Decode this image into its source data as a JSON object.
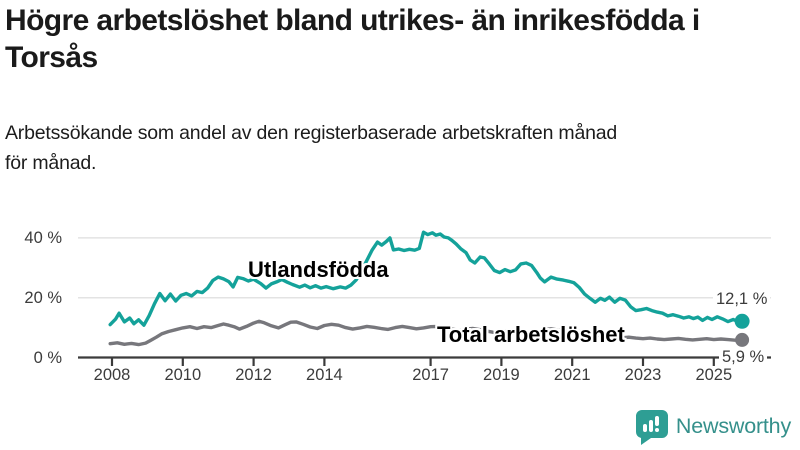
{
  "header": {
    "title_line1": "Högre arbetslöshet bland utrikes- än inrikesfödda i",
    "title_line2": "Torsås",
    "subtitle_line1": "Arbetssökande som andel av den registerbaserade arbetskraften månad",
    "subtitle_line2": "för månad."
  },
  "chart_data": {
    "type": "line",
    "unit": "%",
    "x_axis": {
      "label": "",
      "ticks": [
        2008,
        2010,
        2012,
        2014,
        2017,
        2019,
        2021,
        2023,
        2025
      ],
      "range": [
        2007.9,
        2026.0
      ]
    },
    "y_axis": {
      "label": "",
      "tick_labels": [
        "40 %",
        "20 %",
        "0 %"
      ],
      "tick_values": [
        40,
        20,
        0
      ],
      "range": [
        0,
        44
      ],
      "grid": true
    },
    "series": [
      {
        "name": "Utlandsfödda",
        "color": "#14a29a",
        "end_label": "12,1 %",
        "end_value": 12.1,
        "points": [
          [
            2007.95,
            11.0
          ],
          [
            2008.1,
            12.8
          ],
          [
            2008.2,
            14.8
          ],
          [
            2008.35,
            11.9
          ],
          [
            2008.5,
            13.2
          ],
          [
            2008.62,
            11.3
          ],
          [
            2008.75,
            12.6
          ],
          [
            2008.9,
            10.8
          ],
          [
            2009.05,
            14.0
          ],
          [
            2009.2,
            18.0
          ],
          [
            2009.35,
            21.4
          ],
          [
            2009.5,
            19.0
          ],
          [
            2009.65,
            21.2
          ],
          [
            2009.8,
            18.9
          ],
          [
            2009.95,
            20.8
          ],
          [
            2010.1,
            21.4
          ],
          [
            2010.25,
            20.6
          ],
          [
            2010.4,
            22.1
          ],
          [
            2010.55,
            21.7
          ],
          [
            2010.7,
            23.2
          ],
          [
            2010.85,
            25.8
          ],
          [
            2011.0,
            26.9
          ],
          [
            2011.15,
            26.3
          ],
          [
            2011.3,
            25.4
          ],
          [
            2011.42,
            23.6
          ],
          [
            2011.55,
            26.8
          ],
          [
            2011.7,
            26.4
          ],
          [
            2011.85,
            25.6
          ],
          [
            2012.0,
            26.2
          ],
          [
            2012.2,
            24.7
          ],
          [
            2012.35,
            23.2
          ],
          [
            2012.5,
            24.6
          ],
          [
            2012.65,
            25.3
          ],
          [
            2012.8,
            26.1
          ],
          [
            2012.95,
            25.2
          ],
          [
            2013.1,
            24.4
          ],
          [
            2013.3,
            23.5
          ],
          [
            2013.45,
            24.2
          ],
          [
            2013.6,
            23.3
          ],
          [
            2013.75,
            24.0
          ],
          [
            2013.9,
            23.2
          ],
          [
            2014.05,
            23.7
          ],
          [
            2014.25,
            23.0
          ],
          [
            2014.45,
            23.6
          ],
          [
            2014.6,
            23.2
          ],
          [
            2014.75,
            24.2
          ],
          [
            2014.9,
            26.0
          ],
          [
            2015.05,
            29.0
          ],
          [
            2015.2,
            32.5
          ],
          [
            2015.35,
            36.0
          ],
          [
            2015.5,
            38.6
          ],
          [
            2015.62,
            37.6
          ],
          [
            2015.75,
            38.8
          ],
          [
            2015.85,
            40.0
          ],
          [
            2015.95,
            36.0
          ],
          [
            2016.1,
            36.3
          ],
          [
            2016.25,
            35.8
          ],
          [
            2016.4,
            36.2
          ],
          [
            2016.55,
            35.9
          ],
          [
            2016.68,
            36.5
          ],
          [
            2016.8,
            41.9
          ],
          [
            2016.92,
            41.1
          ],
          [
            2017.05,
            41.7
          ],
          [
            2017.15,
            40.9
          ],
          [
            2017.27,
            41.3
          ],
          [
            2017.38,
            40.3
          ],
          [
            2017.5,
            40.0
          ],
          [
            2017.6,
            39.2
          ],
          [
            2017.72,
            38.0
          ],
          [
            2017.85,
            36.4
          ],
          [
            2018.0,
            35.1
          ],
          [
            2018.12,
            32.6
          ],
          [
            2018.25,
            31.6
          ],
          [
            2018.4,
            33.6
          ],
          [
            2018.52,
            33.3
          ],
          [
            2018.65,
            31.4
          ],
          [
            2018.8,
            29.1
          ],
          [
            2018.95,
            28.4
          ],
          [
            2019.1,
            29.4
          ],
          [
            2019.25,
            28.7
          ],
          [
            2019.4,
            29.3
          ],
          [
            2019.55,
            31.3
          ],
          [
            2019.7,
            31.6
          ],
          [
            2019.85,
            30.8
          ],
          [
            2020.0,
            28.4
          ],
          [
            2020.1,
            26.6
          ],
          [
            2020.22,
            25.3
          ],
          [
            2020.4,
            26.9
          ],
          [
            2020.55,
            26.3
          ],
          [
            2020.75,
            25.9
          ],
          [
            2020.9,
            25.5
          ],
          [
            2021.05,
            25.0
          ],
          [
            2021.2,
            23.4
          ],
          [
            2021.35,
            21.2
          ],
          [
            2021.5,
            19.8
          ],
          [
            2021.65,
            18.5
          ],
          [
            2021.8,
            19.8
          ],
          [
            2021.92,
            19.1
          ],
          [
            2022.05,
            20.2
          ],
          [
            2022.2,
            18.5
          ],
          [
            2022.35,
            19.8
          ],
          [
            2022.5,
            19.2
          ],
          [
            2022.65,
            17.0
          ],
          [
            2022.8,
            15.7
          ],
          [
            2022.95,
            16.0
          ],
          [
            2023.1,
            16.4
          ],
          [
            2023.25,
            15.7
          ],
          [
            2023.4,
            15.2
          ],
          [
            2023.55,
            14.8
          ],
          [
            2023.7,
            13.9
          ],
          [
            2023.85,
            14.3
          ],
          [
            2024.0,
            13.8
          ],
          [
            2024.15,
            13.2
          ],
          [
            2024.3,
            13.6
          ],
          [
            2024.42,
            13.0
          ],
          [
            2024.55,
            13.5
          ],
          [
            2024.68,
            12.4
          ],
          [
            2024.82,
            13.4
          ],
          [
            2024.95,
            12.7
          ],
          [
            2025.1,
            13.6
          ],
          [
            2025.25,
            12.9
          ],
          [
            2025.4,
            12.0
          ],
          [
            2025.55,
            12.7
          ],
          [
            2025.7,
            11.9
          ],
          [
            2025.8,
            12.1
          ]
        ]
      },
      {
        "name": "Total arbetslöshet",
        "color": "#77777c",
        "end_label": "5,9 %",
        "end_value": 5.9,
        "points": [
          [
            2007.95,
            4.6
          ],
          [
            2008.15,
            4.9
          ],
          [
            2008.35,
            4.4
          ],
          [
            2008.55,
            4.7
          ],
          [
            2008.75,
            4.3
          ],
          [
            2008.95,
            4.8
          ],
          [
            2009.1,
            5.8
          ],
          [
            2009.25,
            6.8
          ],
          [
            2009.4,
            7.9
          ],
          [
            2009.6,
            8.7
          ],
          [
            2009.8,
            9.3
          ],
          [
            2010.0,
            9.9
          ],
          [
            2010.2,
            10.3
          ],
          [
            2010.4,
            9.7
          ],
          [
            2010.6,
            10.3
          ],
          [
            2010.8,
            10.0
          ],
          [
            2011.0,
            10.7
          ],
          [
            2011.15,
            11.2
          ],
          [
            2011.3,
            10.8
          ],
          [
            2011.45,
            10.3
          ],
          [
            2011.6,
            9.5
          ],
          [
            2011.8,
            10.4
          ],
          [
            2012.0,
            11.5
          ],
          [
            2012.15,
            12.1
          ],
          [
            2012.3,
            11.6
          ],
          [
            2012.5,
            10.6
          ],
          [
            2012.7,
            9.9
          ],
          [
            2012.9,
            11.0
          ],
          [
            2013.05,
            11.8
          ],
          [
            2013.2,
            11.9
          ],
          [
            2013.4,
            11.1
          ],
          [
            2013.6,
            10.2
          ],
          [
            2013.8,
            9.7
          ],
          [
            2014.0,
            10.7
          ],
          [
            2014.2,
            11.1
          ],
          [
            2014.4,
            10.8
          ],
          [
            2014.6,
            10.0
          ],
          [
            2014.8,
            9.5
          ],
          [
            2015.0,
            9.9
          ],
          [
            2015.2,
            10.4
          ],
          [
            2015.4,
            10.1
          ],
          [
            2015.6,
            9.7
          ],
          [
            2015.8,
            9.4
          ],
          [
            2016.0,
            10.0
          ],
          [
            2016.2,
            10.4
          ],
          [
            2016.4,
            10.0
          ],
          [
            2016.6,
            9.6
          ],
          [
            2016.8,
            9.9
          ],
          [
            2017.0,
            10.3
          ],
          [
            2017.2,
            10.4
          ],
          [
            2017.4,
            9.9
          ],
          [
            2017.6,
            9.5
          ],
          [
            2017.8,
            9.1
          ],
          [
            2018.0,
            9.5
          ],
          [
            2018.2,
            9.7
          ],
          [
            2018.4,
            9.3
          ],
          [
            2018.6,
            8.8
          ],
          [
            2018.8,
            8.4
          ],
          [
            2019.0,
            8.7
          ],
          [
            2019.2,
            9.0
          ],
          [
            2019.4,
            8.8
          ],
          [
            2019.6,
            8.5
          ],
          [
            2019.8,
            8.2
          ],
          [
            2020.0,
            8.7
          ],
          [
            2020.2,
            9.3
          ],
          [
            2020.4,
            9.6
          ],
          [
            2020.6,
            9.2
          ],
          [
            2020.8,
            8.9
          ],
          [
            2021.0,
            9.1
          ],
          [
            2021.2,
            8.8
          ],
          [
            2021.4,
            8.3
          ],
          [
            2021.6,
            7.8
          ],
          [
            2021.8,
            7.4
          ],
          [
            2022.0,
            7.2
          ],
          [
            2022.2,
            6.9
          ],
          [
            2022.4,
            6.6
          ],
          [
            2022.6,
            6.8
          ],
          [
            2022.8,
            6.5
          ],
          [
            2023.0,
            6.3
          ],
          [
            2023.2,
            6.5
          ],
          [
            2023.4,
            6.2
          ],
          [
            2023.6,
            6.0
          ],
          [
            2023.8,
            6.2
          ],
          [
            2024.0,
            6.4
          ],
          [
            2024.2,
            6.1
          ],
          [
            2024.4,
            5.9
          ],
          [
            2024.6,
            6.1
          ],
          [
            2024.8,
            6.3
          ],
          [
            2025.0,
            6.0
          ],
          [
            2025.2,
            6.2
          ],
          [
            2025.4,
            6.0
          ],
          [
            2025.6,
            5.8
          ],
          [
            2025.8,
            5.9
          ]
        ]
      }
    ],
    "annotations": [
      "12,1 %",
      "5,9 %"
    ],
    "legend_position": "inline-labels"
  },
  "colors": {
    "accent_teal": "#14a29a",
    "series_gray": "#77777c",
    "gridline": "#e3e3e3",
    "axis": "#3b3b3b",
    "text_dark": "#1a1a1a",
    "logo_teal": "#2e9e94"
  },
  "branding": {
    "logo_text": "Newsworthy"
  }
}
